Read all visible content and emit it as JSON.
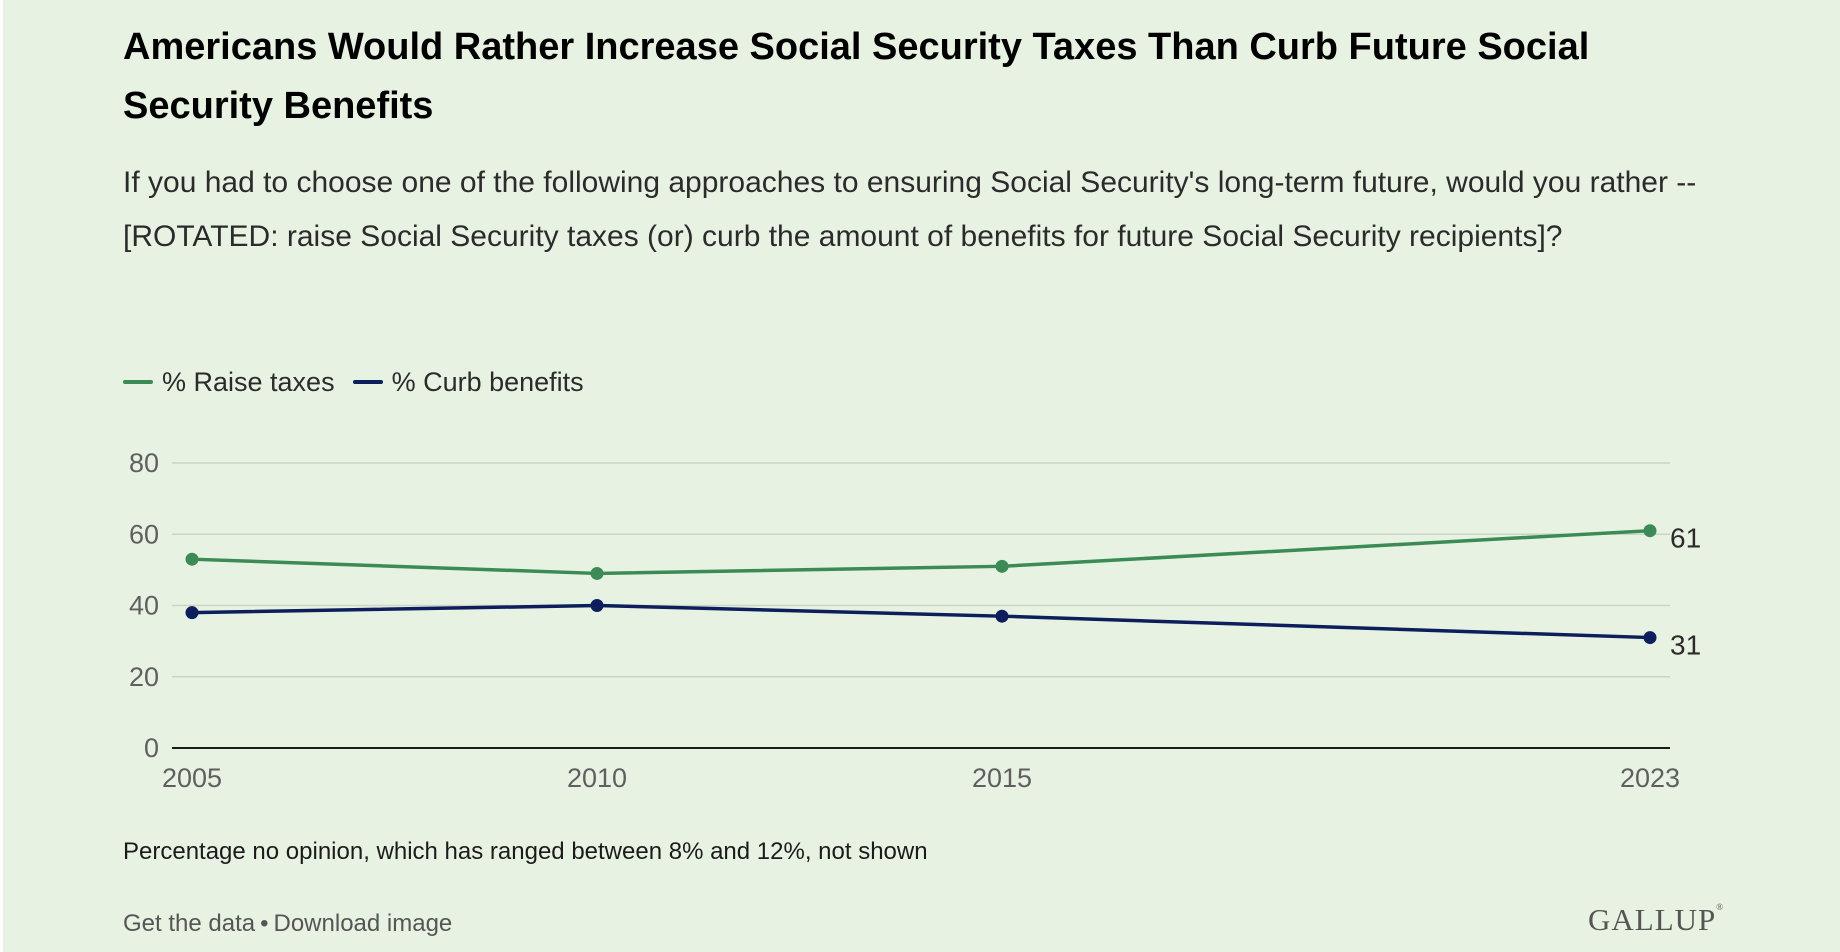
{
  "colors": {
    "background": "#e8f2e3",
    "raise_taxes": "#3c8a55",
    "curb_benefits": "#0c1f5c",
    "grid": "#c9d6c3",
    "axis": "#1b1b1b"
  },
  "header": {
    "title": "Americans Would Rather Increase Social Security Taxes Than Curb Future Social Security Benefits",
    "subtitle": "If you had to choose one of the following approaches to ensuring Social Security's long-term future, would you rather -- [ROTATED: raise Social Security taxes (or) curb the amount of benefits for future Social Security recipients]?"
  },
  "legend": {
    "items": [
      {
        "label": "% Raise taxes",
        "color": "#3c8a55"
      },
      {
        "label": "% Curb benefits",
        "color": "#0c1f5c"
      }
    ]
  },
  "chart_data": {
    "type": "line",
    "title": "Americans Would Rather Increase Social Security Taxes Than Curb Future Social Security Benefits",
    "xlabel": "",
    "ylabel": "",
    "x": [
      "2005",
      "2010",
      "2015",
      "2023"
    ],
    "x_numeric": [
      2005,
      2010,
      2015,
      2023
    ],
    "xlim": [
      2005,
      2023
    ],
    "ylim": [
      0,
      80
    ],
    "yticks": [
      0,
      20,
      40,
      60,
      80
    ],
    "grid": true,
    "legend_position": "top-left",
    "series": [
      {
        "name": "% Raise taxes",
        "values": [
          53,
          49,
          51,
          61
        ],
        "end_label": "61"
      },
      {
        "name": "% Curb benefits",
        "values": [
          38,
          40,
          37,
          31
        ],
        "end_label": "31"
      }
    ]
  },
  "note": "Percentage no opinion, which has ranged between 8% and 12%, not shown",
  "footer": {
    "get_data": "Get the data",
    "separator": "•",
    "download": "Download image",
    "logo": "GALLUP",
    "logo_mark": "®"
  }
}
